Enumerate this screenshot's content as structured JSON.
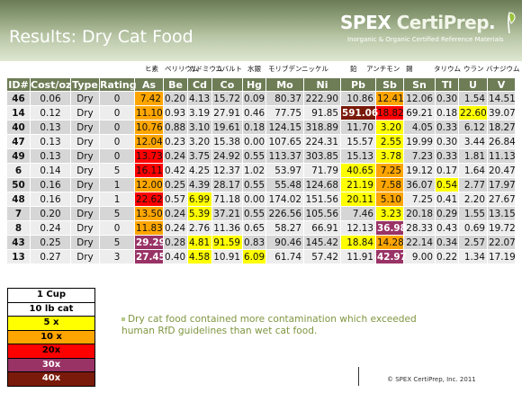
{
  "header": {
    "title": "Results:  Dry Cat Food",
    "logo_spex": "SPEX ",
    "logo_certi": "CertiPrep",
    "logo_dot": ".",
    "logo_sub": "Inorganic & Organic Certified Reference Materials"
  },
  "jp_labels": [
    "ヒ素",
    "ベリリウム",
    "カドミウム",
    "コバルト",
    "水銀",
    "モリブデン",
    "ニッケル",
    "鉛",
    "アンチモン",
    "錫",
    "タリウム",
    "ウラン",
    "バナジウム"
  ],
  "table": {
    "columns": [
      "ID#",
      "Cost/oz",
      "Type",
      "Rating",
      "As",
      "Be",
      "Cd",
      "Co",
      "Hg",
      "Mo",
      "Ni",
      "Pb",
      "Sb",
      "Sn",
      "Tl",
      "U",
      "V"
    ],
    "rows": [
      [
        "46",
        "0.06",
        "Dry",
        "0",
        "7.42",
        "0.20",
        "4.13",
        "15.72",
        "0.09",
        "80.37",
        "222.90",
        "10.86",
        "12.41",
        "12.06",
        "0.30",
        "1.54",
        "14.51"
      ],
      [
        "14",
        "0.12",
        "Dry",
        "0",
        "11.10",
        "0.93",
        "3.19",
        "27.91",
        "0.46",
        "77.75",
        "91.85",
        "591.06",
        "18.82",
        "69.21",
        "0.18",
        "22.60",
        "39.07"
      ],
      [
        "40",
        "0.13",
        "Dry",
        "0",
        "10.76",
        "0.88",
        "3.10",
        "19.61",
        "0.18",
        "124.15",
        "318.89",
        "11.70",
        "3.20",
        "4.05",
        "0.33",
        "6.12",
        "18.27"
      ],
      [
        "47",
        "0.13",
        "Dry",
        "0",
        "12.04",
        "0.23",
        "3.20",
        "15.38",
        "0.00",
        "107.65",
        "224.31",
        "15.57",
        "2.55",
        "19.99",
        "0.30",
        "3.44",
        "26.84"
      ],
      [
        "49",
        "0.13",
        "Dry",
        "0",
        "13.73",
        "0.24",
        "3.75",
        "24.92",
        "0.55",
        "113.37",
        "303.85",
        "15.13",
        "3.78",
        "7.23",
        "0.33",
        "1.81",
        "11.13"
      ],
      [
        "6",
        "0.14",
        "Dry",
        "5",
        "16.11",
        "0.42",
        "4.25",
        "12.37",
        "1.02",
        "53.97",
        "71.79",
        "40.65",
        "7.25",
        "19.12",
        "0.17",
        "1.64",
        "20.47"
      ],
      [
        "50",
        "0.16",
        "Dry",
        "1",
        "12.00",
        "0.25",
        "4.39",
        "28.17",
        "0.55",
        "55.48",
        "124.68",
        "21.19",
        "7.58",
        "36.07",
        "0.54",
        "2.77",
        "17.97"
      ],
      [
        "48",
        "0.16",
        "Dry",
        "1",
        "22.62",
        "0.57",
        "6.99",
        "71.18",
        "0.00",
        "174.02",
        "151.56",
        "20.11",
        "5.10",
        "7.25",
        "0.41",
        "2.20",
        "27.67"
      ],
      [
        "7",
        "0.20",
        "Dry",
        "5",
        "13.50",
        "0.24",
        "5.39",
        "37.21",
        "0.55",
        "226.56",
        "105.56",
        "7.46",
        "3.23",
        "20.18",
        "0.29",
        "1.55",
        "13.15"
      ],
      [
        "8",
        "0.24",
        "Dry",
        "0",
        "11.83",
        "0.24",
        "2.76",
        "11.36",
        "0.65",
        "58.27",
        "66.91",
        "12.13",
        "36.98",
        "28.33",
        "0.43",
        "0.69",
        "19.72"
      ],
      [
        "43",
        "0.25",
        "Dry",
        "5",
        "29.29",
        "0.28",
        "4.81",
        "91.59",
        "0.83",
        "90.46",
        "145.42",
        "18.84",
        "14.28",
        "22.14",
        "0.34",
        "2.57",
        "22.07"
      ],
      [
        "13",
        "0.27",
        "Dry",
        "3",
        "27.45",
        "0.40",
        "4.58",
        "10.91",
        "6.09",
        "61.74",
        "57.42",
        "11.91",
        "42.97",
        "9.00",
        "0.22",
        "1.34",
        "17.19"
      ]
    ],
    "highlight_levels": [
      [
        0,
        0,
        0,
        0,
        10,
        0,
        0,
        0,
        0,
        0,
        0,
        0,
        10,
        0,
        0,
        0,
        0
      ],
      [
        0,
        0,
        0,
        0,
        10,
        0,
        0,
        0,
        0,
        0,
        0,
        40,
        20,
        0,
        0,
        5,
        0
      ],
      [
        0,
        0,
        0,
        0,
        10,
        0,
        0,
        0,
        0,
        0,
        0,
        0,
        5,
        0,
        0,
        0,
        0
      ],
      [
        0,
        0,
        0,
        0,
        10,
        0,
        0,
        0,
        0,
        0,
        0,
        0,
        5,
        0,
        0,
        0,
        0
      ],
      [
        0,
        0,
        0,
        0,
        20,
        0,
        0,
        0,
        0,
        0,
        0,
        0,
        5,
        0,
        0,
        0,
        0
      ],
      [
        0,
        0,
        0,
        0,
        20,
        0,
        0,
        0,
        0,
        0,
        0,
        5,
        10,
        0,
        0,
        0,
        0
      ],
      [
        0,
        0,
        0,
        0,
        10,
        0,
        0,
        0,
        0,
        0,
        0,
        5,
        10,
        0,
        5,
        0,
        0
      ],
      [
        0,
        0,
        0,
        0,
        20,
        0,
        5,
        0,
        0,
        0,
        0,
        5,
        10,
        0,
        0,
        0,
        0
      ],
      [
        0,
        0,
        0,
        0,
        10,
        0,
        5,
        0,
        0,
        0,
        0,
        0,
        5,
        0,
        0,
        0,
        0
      ],
      [
        0,
        0,
        0,
        0,
        10,
        0,
        0,
        0,
        0,
        0,
        0,
        0,
        30,
        0,
        0,
        0,
        0
      ],
      [
        0,
        0,
        0,
        0,
        30,
        0,
        5,
        5,
        0,
        0,
        0,
        5,
        10,
        0,
        0,
        0,
        0
      ],
      [
        0,
        0,
        0,
        0,
        30,
        0,
        5,
        0,
        5,
        0,
        0,
        0,
        30,
        0,
        0,
        0,
        0
      ]
    ]
  },
  "legend": [
    "1 Cup",
    "10 lb cat",
    "5 x",
    "10 x",
    "20x",
    "30x",
    "40x"
  ],
  "legend_colors": [
    "#ffffff",
    "#ffffff",
    "#ffff00",
    "#ffa500",
    "#ff0000",
    "#993366",
    "#7a1a0a"
  ],
  "note": "Dry cat food contained more contamination which exceeded human RfD guidelines than wet cat food.",
  "copyright": "© SPEX CertiPrep, Inc. 2011"
}
